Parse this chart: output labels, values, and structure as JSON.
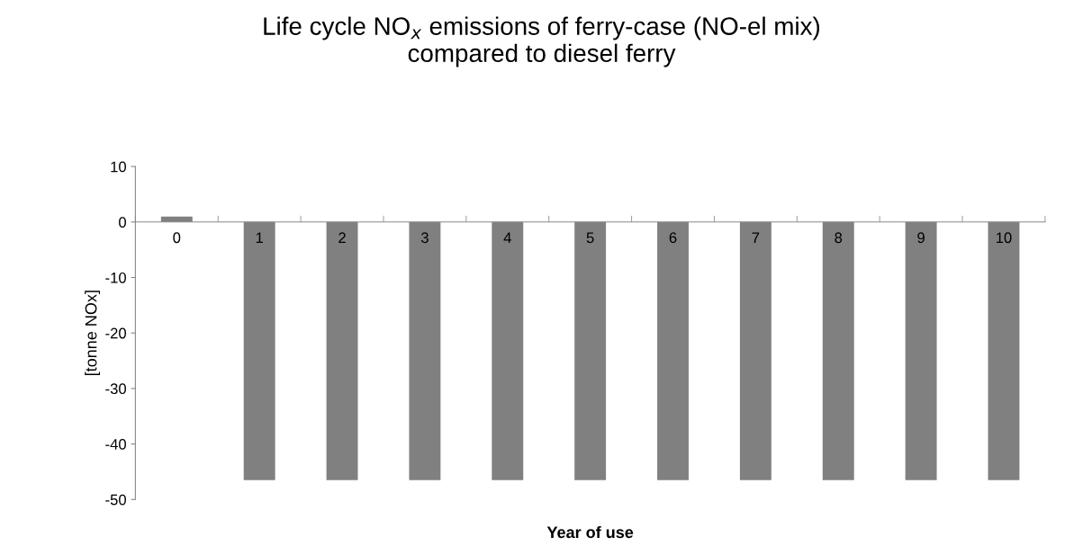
{
  "chart_data": {
    "type": "bar",
    "title": "Life cycle NO$_{x}$ emissions of ferry-case (NO-el mix)\ncompared to diesel ferry",
    "xlabel": "Year of use",
    "ylabel": "[tonne NOx]",
    "categories": [
      "0",
      "1",
      "2",
      "3",
      "4",
      "5",
      "6",
      "7",
      "8",
      "9",
      "10"
    ],
    "values": [
      1,
      -46.5,
      -46.5,
      -46.5,
      -46.5,
      -46.5,
      -46.5,
      -46.5,
      -46.5,
      -46.5,
      -46.5
    ],
    "color": "#808080",
    "ylim": [
      -50,
      10
    ],
    "yticks": [
      -50,
      -40,
      -30,
      -20,
      -10,
      0,
      10
    ],
    "grid": false,
    "legend": false
  }
}
